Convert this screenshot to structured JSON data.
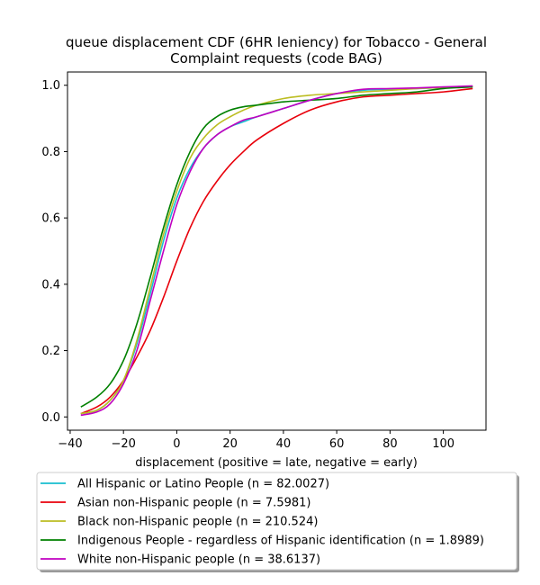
{
  "chart_data": {
    "type": "line",
    "title": "queue displacement CDF (6HR leniency) for Tobacco - General\nComplaint  requests (code BAG)",
    "xlabel": "displacement (positive = late, negative = early)",
    "ylabel": "",
    "xlim": [
      -41,
      116
    ],
    "ylim": [
      -0.04,
      1.04
    ],
    "xticks": [
      -40,
      -20,
      0,
      20,
      40,
      60,
      80,
      100
    ],
    "yticks": [
      0.0,
      0.2,
      0.4,
      0.6,
      0.8,
      1.0
    ],
    "grid": false,
    "legend_position": "bottom",
    "series": [
      {
        "name": "All Hispanic or Latino People (n = 82.0027)",
        "color": "#17becf",
        "x": [
          -36,
          -30,
          -25,
          -20,
          -15,
          -10,
          -5,
          0,
          5,
          10,
          15,
          20,
          25,
          30,
          40,
          50,
          60,
          70,
          80,
          90,
          100,
          111
        ],
        "y": [
          0.01,
          0.02,
          0.05,
          0.11,
          0.22,
          0.37,
          0.53,
          0.66,
          0.75,
          0.81,
          0.85,
          0.875,
          0.89,
          0.905,
          0.93,
          0.955,
          0.975,
          0.985,
          0.988,
          0.99,
          0.993,
          0.997
        ]
      },
      {
        "name": "Asian non-Hispanic people (n = 7.5981)",
        "color": "#e8000b",
        "x": [
          -36,
          -30,
          -25,
          -20,
          -15,
          -10,
          -5,
          0,
          5,
          10,
          15,
          20,
          25,
          30,
          40,
          50,
          60,
          70,
          80,
          90,
          100,
          111
        ],
        "y": [
          0.01,
          0.03,
          0.06,
          0.11,
          0.18,
          0.26,
          0.36,
          0.47,
          0.57,
          0.65,
          0.71,
          0.76,
          0.8,
          0.835,
          0.885,
          0.925,
          0.95,
          0.965,
          0.97,
          0.975,
          0.98,
          0.99
        ]
      },
      {
        "name": "Black non-Hispanic people (n = 210.524)",
        "color": "#bcbd22",
        "x": [
          -36,
          -30,
          -25,
          -20,
          -15,
          -10,
          -5,
          0,
          5,
          10,
          15,
          20,
          25,
          30,
          40,
          50,
          60,
          70,
          80,
          90,
          100,
          111
        ],
        "y": [
          0.01,
          0.02,
          0.05,
          0.11,
          0.23,
          0.39,
          0.55,
          0.68,
          0.78,
          0.84,
          0.88,
          0.905,
          0.925,
          0.94,
          0.96,
          0.97,
          0.975,
          0.98,
          0.985,
          0.99,
          0.993,
          0.996
        ]
      },
      {
        "name": "Indigenous People - regardless of Hispanic identification (n = 1.8989)",
        "color": "#008000",
        "x": [
          -36,
          -30,
          -25,
          -20,
          -15,
          -10,
          -5,
          0,
          5,
          10,
          15,
          20,
          25,
          30,
          40,
          50,
          60,
          70,
          80,
          90,
          100,
          111
        ],
        "y": [
          0.03,
          0.06,
          0.1,
          0.17,
          0.28,
          0.42,
          0.57,
          0.7,
          0.8,
          0.87,
          0.905,
          0.925,
          0.935,
          0.94,
          0.95,
          0.955,
          0.96,
          0.97,
          0.975,
          0.98,
          0.99,
          0.995
        ]
      },
      {
        "name": "White non-Hispanic people (n = 38.6137)",
        "color": "#c000c0",
        "x": [
          -36,
          -30,
          -25,
          -20,
          -15,
          -10,
          -5,
          0,
          5,
          10,
          15,
          20,
          25,
          30,
          40,
          50,
          60,
          70,
          80,
          90,
          100,
          111
        ],
        "y": [
          0.005,
          0.015,
          0.04,
          0.1,
          0.2,
          0.35,
          0.5,
          0.64,
          0.74,
          0.81,
          0.85,
          0.875,
          0.895,
          0.905,
          0.93,
          0.955,
          0.975,
          0.988,
          0.99,
          0.992,
          0.995,
          0.998
        ]
      }
    ]
  }
}
